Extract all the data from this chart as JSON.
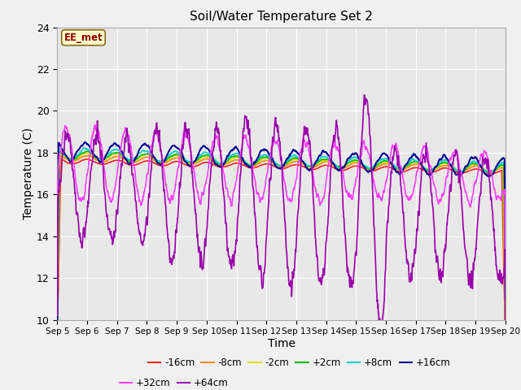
{
  "title": "Soil/Water Temperature Set 2",
  "xlabel": "Time",
  "ylabel": "Temperature (C)",
  "ylim": [
    10,
    24
  ],
  "yticks": [
    10,
    12,
    14,
    16,
    18,
    20,
    22,
    24
  ],
  "x_labels": [
    "Sep 5",
    "Sep 6",
    "Sep 7",
    "Sep 8",
    "Sep 9",
    "Sep 10",
    "Sep 11",
    "Sep 12",
    "Sep 13",
    "Sep 14",
    "Sep 15",
    "Sep 16",
    "Sep 17",
    "Sep 18",
    "Sep 19",
    "Sep 20"
  ],
  "annotation_text": "EE_met",
  "annotation_color": "#8B0000",
  "annotation_bg": "#FFFFCC",
  "annotation_edge": "#8B6914",
  "fig_bg": "#F0F0F0",
  "plot_bg": "#E8E8E8",
  "grid_color": "#FFFFFF",
  "series": [
    {
      "label": "-16cm",
      "color": "#FF2020",
      "lw": 1.2
    },
    {
      "label": "-8cm",
      "color": "#FF8C00",
      "lw": 1.2
    },
    {
      "label": "-2cm",
      "color": "#DDDD00",
      "lw": 1.2
    },
    {
      "label": "+2cm",
      "color": "#00BB00",
      "lw": 1.2
    },
    {
      "label": "+8cm",
      "color": "#00CCCC",
      "lw": 1.2
    },
    {
      "label": "+16cm",
      "color": "#000090",
      "lw": 1.4
    },
    {
      "label": "+32cm",
      "color": "#FF40FF",
      "lw": 1.2
    },
    {
      "label": "+64cm",
      "color": "#9900AA",
      "lw": 1.2
    }
  ]
}
